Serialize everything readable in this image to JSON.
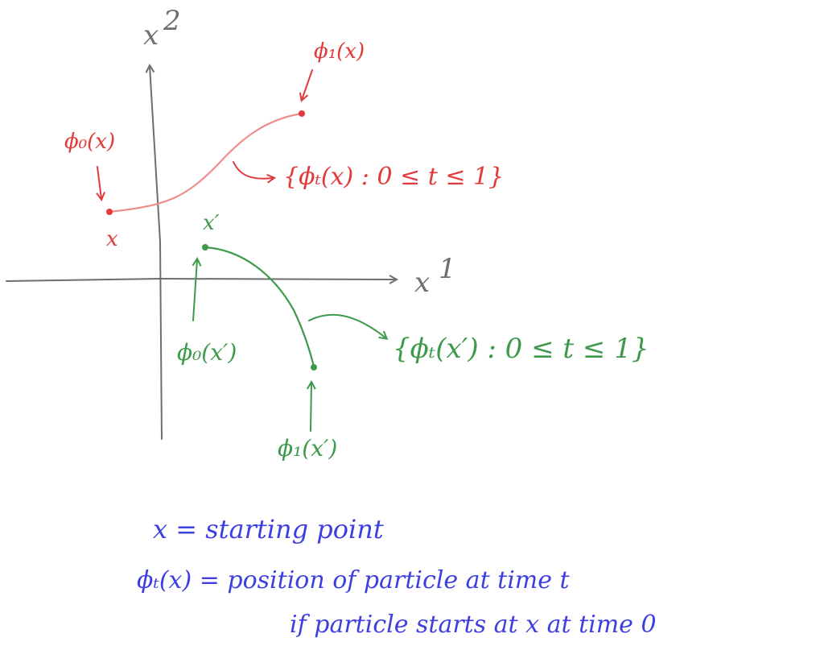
{
  "axes": {
    "x_label": "x",
    "x_superscript": "1",
    "y_label": "x",
    "y_superscript": "2"
  },
  "red_path": {
    "start_label": "x",
    "start_annotation": "ϕ₀(x)",
    "end_annotation": "ϕ₁(x)",
    "set_label": "{ϕₜ(x) : 0 ≤ t ≤ 1}",
    "color": "#e23a3a"
  },
  "green_path": {
    "start_label": "x′",
    "start_annotation": "ϕ₀(x′)",
    "end_annotation": "ϕ₁(x′)",
    "set_label": "{ϕₜ(x′) : 0 ≤ t ≤ 1}",
    "color": "#3d9a4a"
  },
  "notes": {
    "line1": "x  =  starting point",
    "line2": "ϕₜ(x)  =  position of particle at time t",
    "line3": "if particle starts at x at time 0",
    "color": "#3d3fe0"
  }
}
